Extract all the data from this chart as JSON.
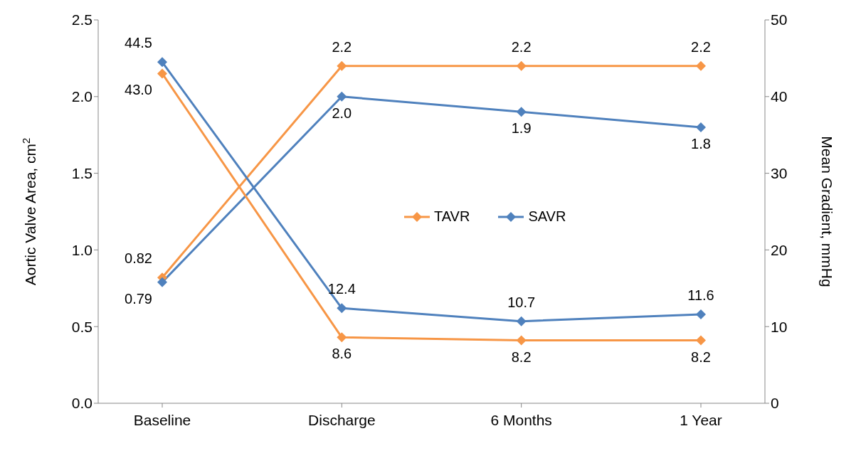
{
  "chart_data": {
    "type": "line",
    "categories": [
      "Baseline",
      "Discharge",
      "6 Months",
      "1 Year"
    ],
    "ylabel": "Aortic Valve Area, cm$^{2}$",
    "y2label": "Mean Gradient, mmHg",
    "ylim": [
      0,
      2.5
    ],
    "yticks": [
      {
        "value": 0,
        "label": "0.0"
      },
      {
        "value": 0.5,
        "label": "0.5"
      },
      {
        "value": 1,
        "label": "1.0"
      },
      {
        "value": 1.5,
        "label": "1.5"
      },
      {
        "value": 2,
        "label": "2.0"
      },
      {
        "value": 2.5,
        "label": "2.5"
      }
    ],
    "y2lim": [
      0,
      50
    ],
    "y2ticks": [
      0,
      10,
      20,
      30,
      40,
      50
    ],
    "series": [
      {
        "name": "TAVR",
        "color": "#f79646",
        "values": [
          0.82,
          2.2,
          2.2,
          2.2
        ],
        "value_labels": [
          "0.82",
          "2.2",
          "2.2",
          "2.2"
        ]
      },
      {
        "name": "SAVR",
        "color": "#4f81bd",
        "values": [
          0.79,
          2.0,
          1.9,
          1.8
        ],
        "value_labels": [
          "0.79",
          "2.0",
          "1.9",
          "1.8"
        ]
      },
      {
        "color": "#f79646",
        "axis": "y2",
        "values": [
          43.0,
          8.6,
          8.2,
          8.2
        ],
        "value_labels": [
          "43.0",
          "8.6",
          "8.2",
          "8.2"
        ]
      },
      {
        "color": "#4f81bd",
        "axis": "y2",
        "values": [
          44.5,
          12.4,
          10.7,
          11.6
        ],
        "value_labels": [
          "44.5",
          "12.4",
          "10.7",
          "11.6"
        ]
      }
    ],
    "grid": false,
    "legend": "center",
    "marker": "diamond",
    "line_style": "solid"
  }
}
